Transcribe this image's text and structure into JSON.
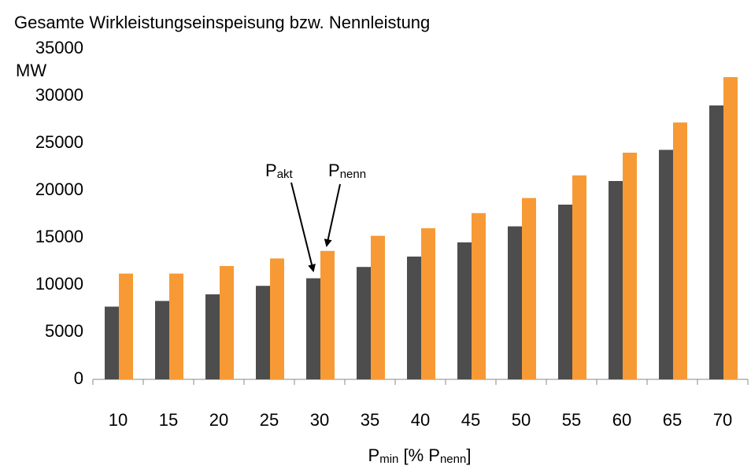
{
  "chart_data": {
    "type": "bar",
    "title": "Gesamte Wirkleistungseinspeisung bzw. Nennleistung",
    "y_label": "MW",
    "x_label": [
      {
        "text": "P"
      },
      {
        "text": "min",
        "sub": true
      },
      {
        "text": " [% P"
      },
      {
        "text": "nenn",
        "sub": true
      },
      {
        "text": "]"
      }
    ],
    "categories": [
      "10",
      "15",
      "20",
      "25",
      "30",
      "35",
      "40",
      "45",
      "50",
      "55",
      "60",
      "65",
      "70"
    ],
    "series": [
      {
        "color": "#4d4d4d",
        "values": [
          7700,
          8300,
          9000,
          9900,
          10700,
          11900,
          13000,
          14500,
          16200,
          18500,
          21000,
          24300,
          29000
        ]
      },
      {
        "color": "#f79a35",
        "values": [
          11200,
          11200,
          12000,
          12800,
          13600,
          15200,
          16000,
          17600,
          19200,
          21600,
          24000,
          27200,
          32000
        ]
      }
    ],
    "annotations": [
      {
        "text": "P",
        "sub": "akt"
      },
      {
        "text": "P",
        "sub": "nenn"
      }
    ],
    "ylim": [
      0,
      35000
    ],
    "yticks": [
      0,
      5000,
      10000,
      15000,
      20000,
      25000,
      30000,
      35000
    ],
    "grid": false
  }
}
